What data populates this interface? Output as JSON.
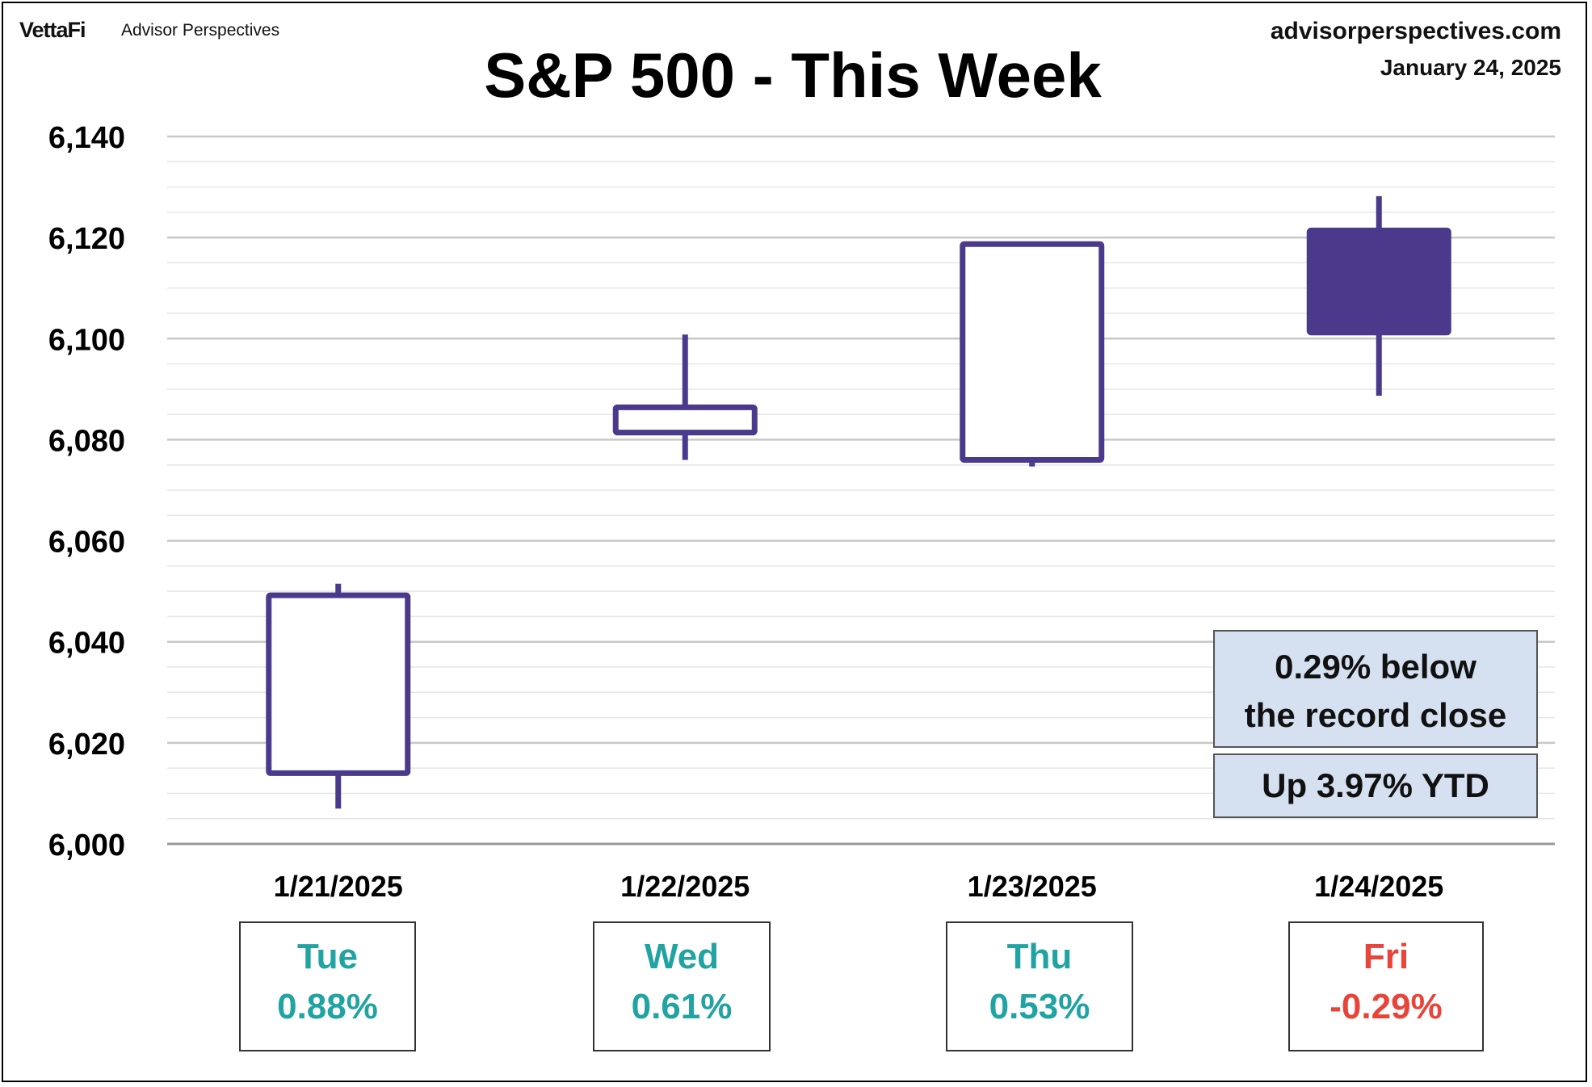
{
  "header": {
    "logo": "VettaFi",
    "logo_sub": "Advisor Perspectives",
    "site": "advisorperspectives.com",
    "date": "January 24, 2025"
  },
  "notes": {
    "record": [
      "0.29% below",
      "the record close"
    ],
    "ytd": "Up 3.97% YTD"
  },
  "colors": {
    "candle": "#4b3a8c",
    "up_text": "#21a3a3",
    "down_text": "#e8443a",
    "gridline": "#d9d9d9"
  },
  "chart_data": {
    "type": "candlestick",
    "title": "S&P 500 - This Week",
    "ylim": [
      6000,
      6140
    ],
    "yticks": [
      6000,
      6020,
      6040,
      6060,
      6080,
      6100,
      6120,
      6140
    ],
    "ytick_labels": [
      "6,000",
      "6,020",
      "6,040",
      "6,060",
      "6,080",
      "6,100",
      "6,120",
      "6,140"
    ],
    "grid": true,
    "categories": [
      "1/21/2025",
      "1/22/2025",
      "1/23/2025",
      "1/24/2025"
    ],
    "candles": [
      {
        "date": "1/21/2025",
        "open": 6014,
        "high": 6051.5,
        "low": 6007,
        "close": 6049.2,
        "day": "Tue",
        "change": "0.88%",
        "direction": "up"
      },
      {
        "date": "1/22/2025",
        "open": 6081.4,
        "high": 6100.8,
        "low": 6076,
        "close": 6086.4,
        "day": "Wed",
        "change": "0.61%",
        "direction": "up"
      },
      {
        "date": "1/23/2025",
        "open": 6076,
        "high": 6118.7,
        "low": 6074.7,
        "close": 6118.7,
        "day": "Thu",
        "change": "0.53%",
        "direction": "up"
      },
      {
        "date": "1/24/2025",
        "open": 6121.4,
        "high": 6128.2,
        "low": 6088.7,
        "close": 6101.2,
        "day": "Fri",
        "change": "-0.29%",
        "direction": "down"
      }
    ]
  }
}
